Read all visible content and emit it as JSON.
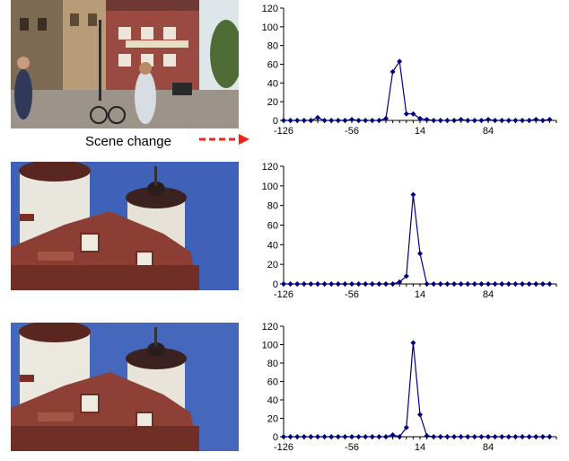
{
  "annotation": {
    "label": "Scene change",
    "arrow_color": "#e8281e"
  },
  "images": [
    {
      "name": "street-scene-photo"
    },
    {
      "name": "castle-tower-photo"
    },
    {
      "name": "castle-tower-photo"
    }
  ],
  "chart_data": [
    {
      "type": "line",
      "ylim": [
        0,
        120
      ],
      "yticks": [
        0,
        20,
        40,
        60,
        80,
        100,
        120
      ],
      "xtick_labels": [
        "-126",
        "-56",
        "14",
        "84"
      ],
      "xlim": [
        -126,
        154
      ],
      "marker": "diamond",
      "color": "#000080",
      "x": [
        -126,
        -119,
        -112,
        -105,
        -98,
        -91,
        -84,
        -77,
        -70,
        -63,
        -56,
        -49,
        -42,
        -35,
        -28,
        -21,
        -14,
        -7,
        0,
        7,
        14,
        21,
        28,
        35,
        42,
        49,
        56,
        63,
        70,
        77,
        84,
        91,
        98,
        105,
        112,
        119,
        126,
        133,
        140,
        147
      ],
      "values": [
        0,
        0,
        0,
        0,
        0,
        3,
        0,
        0,
        0,
        0,
        1,
        0,
        0,
        0,
        0,
        2,
        52,
        63,
        7,
        7,
        2,
        1,
        0,
        0,
        0,
        0,
        1,
        0,
        0,
        0,
        1,
        0,
        0,
        0,
        0,
        0,
        0,
        1,
        0,
        1
      ]
    },
    {
      "type": "line",
      "ylim": [
        0,
        120
      ],
      "yticks": [
        0,
        20,
        40,
        60,
        80,
        100,
        120
      ],
      "xtick_labels": [
        "-126",
        "-56",
        "14",
        "84"
      ],
      "xlim": [
        -126,
        154
      ],
      "marker": "diamond",
      "color": "#000080",
      "x": [
        -126,
        -119,
        -112,
        -105,
        -98,
        -91,
        -84,
        -77,
        -70,
        -63,
        -56,
        -49,
        -42,
        -35,
        -28,
        -21,
        -14,
        -7,
        0,
        7,
        14,
        21,
        28,
        35,
        42,
        49,
        56,
        63,
        70,
        77,
        84,
        91,
        98,
        105,
        112,
        119,
        126,
        133,
        140,
        147
      ],
      "values": [
        0,
        0,
        0,
        0,
        0,
        0,
        0,
        0,
        0,
        0,
        0,
        0,
        0,
        0,
        0,
        0,
        0,
        2,
        8,
        91,
        31,
        0,
        0,
        0,
        0,
        0,
        0,
        0,
        0,
        0,
        0,
        0,
        0,
        0,
        0,
        0,
        0,
        0,
        0,
        0
      ]
    },
    {
      "type": "line",
      "ylim": [
        0,
        120
      ],
      "yticks": [
        0,
        20,
        40,
        60,
        80,
        100,
        120
      ],
      "xtick_labels": [
        "-126",
        "-56",
        "14",
        "84"
      ],
      "xlim": [
        -126,
        154
      ],
      "marker": "diamond",
      "color": "#000080",
      "x": [
        -126,
        -119,
        -112,
        -105,
        -98,
        -91,
        -84,
        -77,
        -70,
        -63,
        -56,
        -49,
        -42,
        -35,
        -28,
        -21,
        -14,
        -7,
        0,
        7,
        14,
        21,
        28,
        35,
        42,
        49,
        56,
        63,
        70,
        77,
        84,
        91,
        98,
        105,
        112,
        119,
        126,
        133,
        140,
        147
      ],
      "values": [
        0,
        0,
        0,
        0,
        0,
        0,
        0,
        0,
        0,
        0,
        0,
        0,
        0,
        0,
        0,
        0,
        2,
        0,
        10,
        102,
        24,
        1,
        0,
        0,
        0,
        0,
        0,
        0,
        0,
        0,
        0,
        0,
        0,
        0,
        0,
        0,
        0,
        0,
        0,
        0
      ]
    }
  ]
}
